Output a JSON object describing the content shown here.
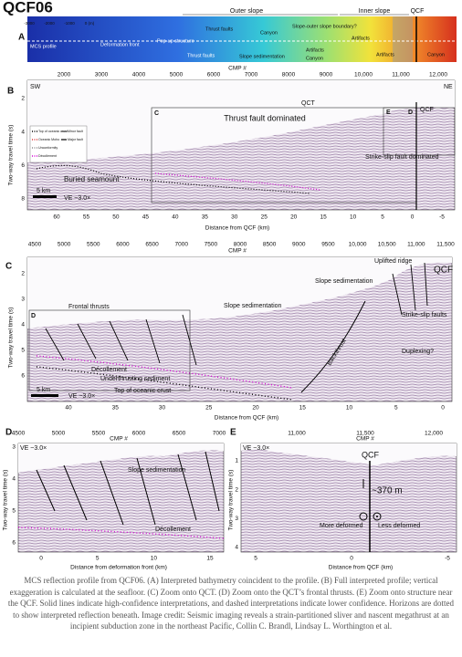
{
  "title": "QCF06",
  "colorbar": {
    "labels": [
      "-3000",
      "-2000",
      "-1000",
      "0 (m)"
    ]
  },
  "panel_a": {
    "label": "A",
    "outer_slope": "Outer slope",
    "inner_slope": "Inner slope",
    "qcf": "QCF",
    "mcs_profile": "MCS profile",
    "deformation_front": "Deformation front",
    "popup": "Pop-up structure",
    "thrust_faults_1": "Thrust faults",
    "canyon_1": "Canyon",
    "boundary": "Slope-outer slope boundary?",
    "artifacts_1": "Artifacts",
    "thrust_faults_2": "Thrust faults",
    "slope_sedimentation": "Slope sedimentation",
    "artifacts_2": "Artifacts",
    "canyon_2": "Canyon",
    "artifacts_3": "Artifacts",
    "canyon_3": "Canyon"
  },
  "panel_b": {
    "label": "B",
    "cmp_label": "CMP #",
    "cmp_ticks": [
      "2000",
      "3000",
      "4000",
      "5000",
      "6000",
      "7000",
      "8000",
      "9000",
      "10,000",
      "11,000",
      "12,000"
    ],
    "y_label": "Two-way travel time (s)",
    "y_ticks": [
      "2",
      "4",
      "6",
      "8"
    ],
    "x_ticks": [
      "60",
      "55",
      "50",
      "45",
      "40",
      "35",
      "30",
      "25",
      "20",
      "15",
      "10",
      "5",
      "0",
      "-5"
    ],
    "x_label": "Distance from QCF (km)",
    "sw": "SW",
    "ne": "NE",
    "box_c": "C",
    "qct": "QCT",
    "box_e": "E",
    "box_d": "D",
    "qcf": "QCF",
    "thrust": "Thrust fault dominated",
    "strike_slip": "Strike-slip fault dominated",
    "seamount": "Buried seamount",
    "scale": "5 km",
    "ve": "VE ~3.0×",
    "legend": [
      "Top of oceanic crust",
      "Oceanic Moho",
      "Unconformity",
      "Décollement",
      "Minor fault",
      "Major fault"
    ]
  },
  "panel_c": {
    "label": "C",
    "cmp_label": "CMP #",
    "cmp_ticks": [
      "4500",
      "5000",
      "5500",
      "6000",
      "6500",
      "7000",
      "7500",
      "8000",
      "8500",
      "9000",
      "9500",
      "10,000",
      "10,500",
      "11,000",
      "11,500"
    ],
    "y_label": "Two-way travel time (s)",
    "y_ticks": [
      "2",
      "3",
      "4",
      "5",
      "6"
    ],
    "x_ticks": [
      "40",
      "35",
      "30",
      "25",
      "20",
      "15",
      "10",
      "5",
      "0"
    ],
    "x_label": "Distance from QCF (km)",
    "ridge": "Uplifted ridge",
    "qcf": "QCF",
    "slope_sed_1": "Slope sedimentation",
    "frontal": "Frontal thrusts",
    "slope_sed_2": "Slope sedimentation",
    "strike_slip": "Strike-slip faults",
    "duplexing": "Duplexing?",
    "backthrust": "Backthrust",
    "decollement": "Décollement",
    "underthrusting": "Underthrusting sediment",
    "crust": "Top of oceanic crust",
    "scale": "5 km",
    "ve": "VE ~3.0×",
    "box_d": "D"
  },
  "panel_d": {
    "label": "D",
    "cmp_label": "CMP #",
    "cmp_ticks": [
      "4500",
      "5000",
      "5500",
      "6000",
      "6500",
      "7000"
    ],
    "y_label": "Two-way travel time (s)",
    "y_ticks": [
      "3",
      "4",
      "5",
      "6"
    ],
    "x_ticks": [
      "0",
      "5",
      "10",
      "15"
    ],
    "x_label": "Distance from deformation front (km)",
    "ve": "VE ~3.0×",
    "slope_sed": "Slope sedimentation",
    "decollement": "Décollement"
  },
  "panel_e": {
    "label": "E",
    "cmp_label": "CMP #",
    "cmp_ticks": [
      "11,000",
      "11,500",
      "12,000"
    ],
    "y_label": "Two-way travel time (s)",
    "y_ticks": [
      "1",
      "2",
      "3",
      "4"
    ],
    "x_ticks": [
      "5",
      "0",
      "-5"
    ],
    "x_label": "Distance from QCF (km)",
    "ve": "VE ~3.0×",
    "qcf": "QCF",
    "offset": "~370 m",
    "more": "More deformed",
    "less": "Less deformed"
  },
  "caption": "MCS reflection profile from QCF06. (A) Interpreted bathymetry coincident to the profile. (B) Full interpreted profile; vertical exaggeration is calculated at the seafloor. (C) Zoom onto QCT. (D) Zoom onto the QCT’s frontal thrusts. (E) Zoom onto structure near the QCF. Solid lines indicate high-confidence interpretations, and dashed interpretations indicate lower confidence. Horizons are dotted to show interpreted reflection beneath. Image credit: Seismic imaging reveals a strain-partitioned sliver and nascent megathrust at an incipient subduction zone in the northeast Pacific, Collin C. Brandl, Lindsay L. Worthington et al."
}
